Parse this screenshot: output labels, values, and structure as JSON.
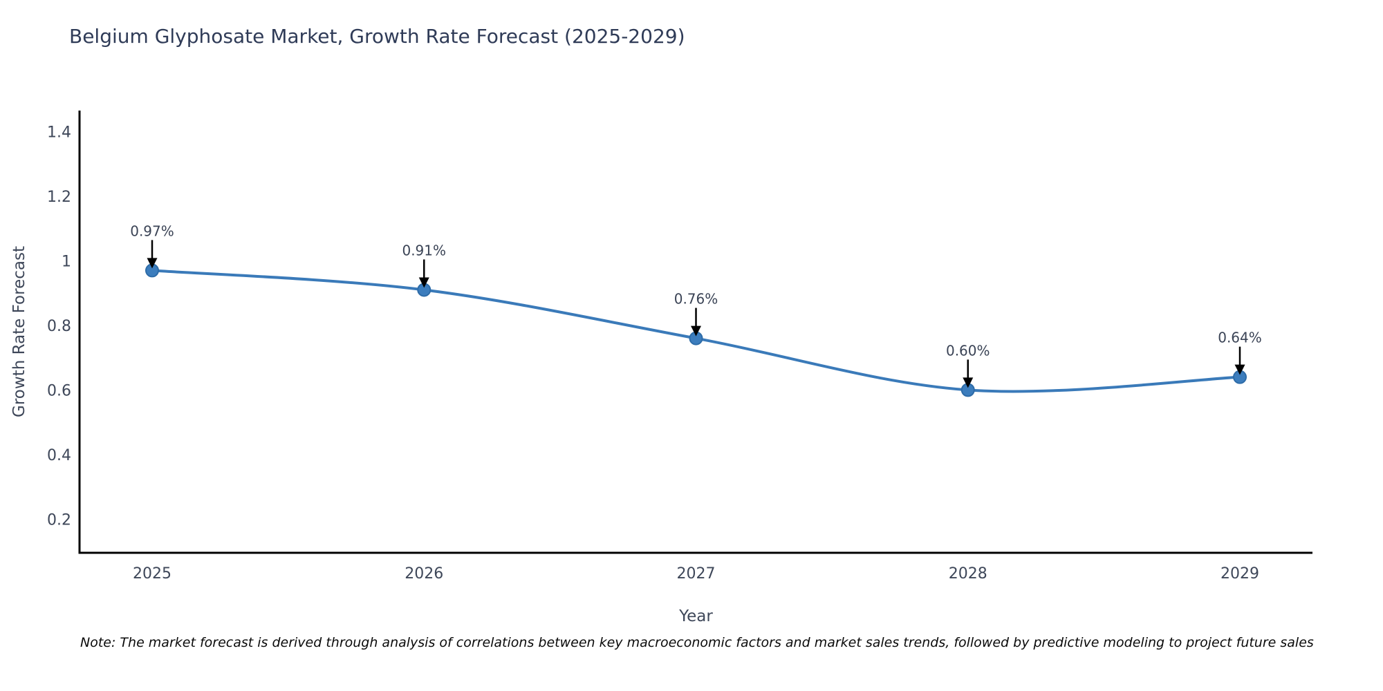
{
  "title": "Belgium Glyphosate Market, Growth Rate Forecast (2025-2029)",
  "note": "Note: The market forecast is derived through analysis of correlations between key macroeconomic factors and market sales trends, followed by predictive modeling to project future sales",
  "chart_data": {
    "type": "line",
    "title": "Belgium Glyphosate Market, Growth Rate Forecast (2025-2029)",
    "xlabel": "Year",
    "ylabel": "Growth Rate Forecast",
    "x": [
      "2025",
      "2026",
      "2027",
      "2028",
      "2029"
    ],
    "values": [
      0.97,
      0.91,
      0.76,
      0.6,
      0.64
    ],
    "point_labels": [
      "0.97%",
      "0.91%",
      "0.76%",
      "0.60%",
      "0.64%"
    ],
    "yticks": [
      0.2,
      0.4,
      0.6,
      0.8,
      1,
      1.2,
      1.4
    ],
    "ytick_labels": [
      "0.2",
      "0.4",
      "0.6",
      "0.8",
      "1",
      "1.2",
      "1.4"
    ],
    "ylim": [
      0.096,
      1.465
    ],
    "grid": false,
    "legend": "none",
    "line_style": "spline",
    "colors": {
      "line": "#3a7ab9",
      "marker_fill": "#3c7dbd",
      "marker_edge": "#2e6ca8",
      "axis_line": "#000000",
      "tick_text": "#3e4759",
      "annotation_text": "#3a4355",
      "annotation_arrow": "#000000",
      "title_text": "#2f3b57"
    }
  }
}
